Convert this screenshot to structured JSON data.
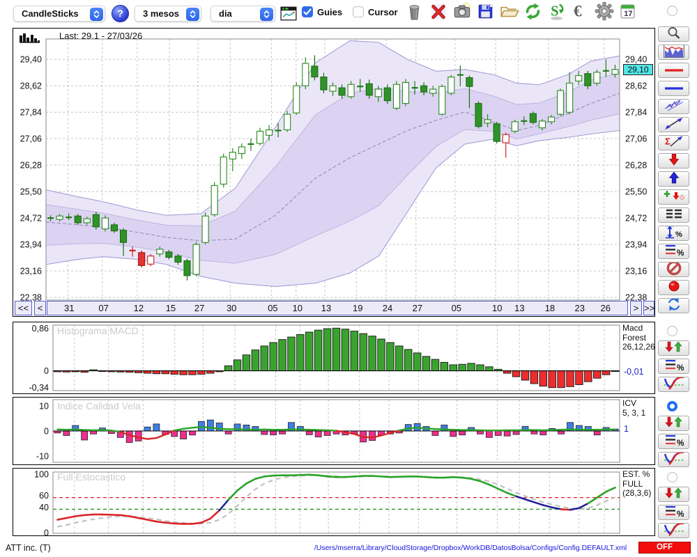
{
  "toolbar": {
    "chart_type_select": "CandleSticks",
    "period_select": "3 mesos",
    "timeframe_select": "dia",
    "help_label": "?",
    "guides_label": "Guies",
    "guides_checked": true,
    "cursor_label": "Cursor",
    "cursor_checked": false,
    "calendar_day": "17",
    "icons": [
      "trash",
      "delete",
      "snapshot",
      "save",
      "open",
      "refresh",
      "update-quotes",
      "euro",
      "settings",
      "calendar"
    ]
  },
  "main_chart": {
    "last_label": "Last: 29.1 - 27/03/26",
    "price_tag": "29,10",
    "y_ticks": [
      "29,40",
      "28,62",
      "27,84",
      "27,06",
      "26,28",
      "25,50",
      "24,72",
      "23,94",
      "23,16",
      "22,38"
    ],
    "y_values": [
      29.4,
      28.62,
      27.84,
      27.06,
      26.28,
      25.5,
      24.72,
      23.94,
      23.16,
      22.38
    ],
    "nav": {
      "first": "<<",
      "prev": "<",
      "next": ">",
      "last": ">>"
    },
    "dates": [
      {
        "label": "31",
        "f": 0.038
      },
      {
        "label": "07",
        "f": 0.098
      },
      {
        "label": "12",
        "f": 0.159
      },
      {
        "label": "15",
        "f": 0.215
      },
      {
        "label": "27",
        "f": 0.265
      },
      {
        "label": "30",
        "f": 0.321
      },
      {
        "label": "05",
        "f": 0.393
      },
      {
        "label": "10",
        "f": 0.436
      },
      {
        "label": "13",
        "f": 0.486
      },
      {
        "label": "19",
        "f": 0.541
      },
      {
        "label": "24",
        "f": 0.593
      },
      {
        "label": "27",
        "f": 0.645
      },
      {
        "label": "05",
        "f": 0.713
      },
      {
        "label": "10",
        "f": 0.784
      },
      {
        "label": "13",
        "f": 0.823
      },
      {
        "label": "18",
        "f": 0.876
      },
      {
        "label": "23",
        "f": 0.928
      },
      {
        "label": "26",
        "f": 0.973
      }
    ]
  },
  "chart_data": [
    {
      "id": "price",
      "type": "candlestick",
      "last_price": 29.1,
      "ylim": [
        22.3,
        30.0
      ],
      "candle_types": {
        "0": "bull-filled-green",
        "1": "hollow-green",
        "2": "bear-filled-red",
        "3": "hollow-red",
        "4": "doji-green",
        "5": "doji-red"
      },
      "candles": [
        [
          24.7,
          24.8,
          24.62,
          24.72,
          4
        ],
        [
          24.68,
          24.84,
          24.62,
          24.78,
          1
        ],
        [
          24.74,
          24.86,
          24.66,
          24.74,
          4
        ],
        [
          24.78,
          24.84,
          24.52,
          24.58,
          0
        ],
        [
          24.58,
          24.76,
          24.52,
          24.7,
          1
        ],
        [
          24.82,
          24.9,
          24.38,
          24.46,
          0
        ],
        [
          24.4,
          24.8,
          24.32,
          24.72,
          1
        ],
        [
          24.52,
          24.58,
          24.28,
          24.34,
          0
        ],
        [
          24.36,
          24.42,
          23.6,
          24.0,
          0
        ],
        [
          23.76,
          23.88,
          23.58,
          23.76,
          5
        ],
        [
          23.7,
          23.76,
          23.26,
          23.32,
          2
        ],
        [
          23.36,
          23.66,
          23.3,
          23.6,
          3
        ],
        [
          23.66,
          23.88,
          23.58,
          23.8,
          1
        ],
        [
          23.72,
          23.78,
          23.5,
          23.56,
          0
        ],
        [
          23.6,
          23.66,
          23.34,
          23.42,
          0
        ],
        [
          23.46,
          23.52,
          22.88,
          23.02,
          0
        ],
        [
          23.06,
          24.02,
          23.0,
          23.94,
          1
        ],
        [
          24.0,
          24.88,
          23.94,
          24.78,
          1
        ],
        [
          24.82,
          25.78,
          24.76,
          25.68,
          1
        ],
        [
          25.72,
          26.62,
          25.62,
          26.52,
          1
        ],
        [
          26.46,
          26.78,
          26.1,
          26.66,
          1
        ],
        [
          26.62,
          26.92,
          26.46,
          26.82,
          1
        ],
        [
          26.86,
          27.06,
          26.7,
          26.9,
          4
        ],
        [
          26.92,
          27.38,
          26.86,
          27.28,
          1
        ],
        [
          27.16,
          27.46,
          27.0,
          27.32,
          1
        ],
        [
          27.26,
          27.52,
          27.1,
          27.3,
          4
        ],
        [
          27.32,
          27.88,
          27.26,
          27.78,
          1
        ],
        [
          27.82,
          28.72,
          27.76,
          28.62,
          1
        ],
        [
          28.62,
          29.46,
          28.52,
          29.28,
          1
        ],
        [
          29.2,
          29.52,
          28.78,
          28.88,
          0
        ],
        [
          28.88,
          29.0,
          28.4,
          28.5,
          0
        ],
        [
          28.46,
          28.72,
          28.32,
          28.62,
          1
        ],
        [
          28.56,
          28.66,
          28.24,
          28.34,
          0
        ],
        [
          28.3,
          28.76,
          28.24,
          28.66,
          1
        ],
        [
          28.6,
          28.82,
          28.44,
          28.6,
          4
        ],
        [
          28.68,
          28.8,
          28.24,
          28.34,
          0
        ],
        [
          28.3,
          28.62,
          28.14,
          28.52,
          1
        ],
        [
          28.56,
          28.66,
          28.08,
          28.18,
          0
        ],
        [
          27.96,
          28.76,
          27.9,
          28.66,
          1
        ],
        [
          28.1,
          28.82,
          28.02,
          28.72,
          1
        ],
        [
          28.56,
          28.76,
          28.36,
          28.56,
          4
        ],
        [
          28.62,
          28.72,
          28.34,
          28.44,
          0
        ],
        [
          28.4,
          28.62,
          28.3,
          28.52,
          1
        ],
        [
          27.78,
          28.66,
          27.74,
          28.6,
          1
        ],
        [
          28.4,
          28.94,
          28.34,
          28.88,
          1
        ],
        [
          28.9,
          29.22,
          28.6,
          28.94,
          4
        ],
        [
          28.86,
          28.92,
          27.96,
          28.6,
          0
        ],
        [
          28.1,
          28.16,
          27.36,
          27.42,
          0
        ],
        [
          27.62,
          27.78,
          27.4,
          27.52,
          1
        ],
        [
          27.5,
          27.56,
          26.92,
          26.98,
          0
        ],
        [
          26.94,
          27.24,
          26.5,
          27.18,
          3
        ],
        [
          27.28,
          27.62,
          27.22,
          27.56,
          1
        ],
        [
          27.58,
          27.72,
          27.46,
          27.58,
          4
        ],
        [
          27.8,
          27.86,
          27.48,
          27.54,
          0
        ],
        [
          27.38,
          27.64,
          27.3,
          27.58,
          1
        ],
        [
          27.56,
          27.76,
          27.48,
          27.7,
          1
        ],
        [
          27.78,
          28.54,
          27.72,
          28.48,
          1
        ],
        [
          27.84,
          29.02,
          27.78,
          28.7,
          1
        ],
        [
          28.76,
          29.06,
          28.64,
          28.92,
          1
        ],
        [
          28.98,
          29.06,
          28.52,
          28.62,
          0
        ],
        [
          28.7,
          29.1,
          28.62,
          29.02,
          1
        ],
        [
          29.0,
          29.4,
          28.88,
          29.06,
          4
        ],
        [
          28.96,
          29.24,
          28.86,
          29.1,
          1
        ]
      ],
      "bollinger": {
        "f": [
          0,
          0.055,
          0.1,
          0.16,
          0.21,
          0.27,
          0.33,
          0.4,
          0.47,
          0.53,
          0.58,
          0.63,
          0.68,
          0.73,
          0.78,
          0.82,
          0.86,
          0.91,
          0.95,
          1.0
        ],
        "upper": [
          25.55,
          25.35,
          25.2,
          24.95,
          24.8,
          24.85,
          25.6,
          27.4,
          29.3,
          29.95,
          29.9,
          29.4,
          29.05,
          29.1,
          28.95,
          28.7,
          28.65,
          28.95,
          29.35,
          29.5
        ],
        "lower": [
          23.35,
          23.5,
          23.58,
          23.5,
          23.35,
          23.0,
          22.8,
          22.7,
          22.8,
          23.1,
          23.6,
          24.9,
          26.2,
          26.9,
          27.05,
          26.85,
          27.0,
          27.1,
          27.2,
          27.3
        ],
        "mid": [
          24.6,
          24.52,
          24.45,
          24.3,
          24.15,
          24.05,
          24.1,
          24.8,
          25.9,
          26.5,
          26.9,
          27.3,
          27.6,
          27.85,
          27.55,
          27.3,
          27.45,
          27.8,
          28.1,
          28.4
        ]
      }
    },
    {
      "id": "macd",
      "type": "bar",
      "title": "Histograma MACD",
      "right_lines": [
        "Macd",
        "Forest",
        "26,12,26"
      ],
      "current": "-0,01",
      "current_v": -0.01,
      "ylim": [
        -0.4,
        0.92
      ],
      "yticks": [
        {
          "label": "0,86",
          "v": 0.86
        },
        {
          "label": "0",
          "v": 0
        },
        {
          "label": "-0,34",
          "v": -0.34
        }
      ],
      "values": [
        -0.02,
        -0.025,
        -0.02,
        -0.03,
        0.02,
        -0.015,
        -0.02,
        -0.025,
        -0.03,
        -0.04,
        -0.05,
        -0.06,
        -0.06,
        -0.07,
        -0.08,
        -0.08,
        -0.07,
        -0.05,
        -0.02,
        0.1,
        0.22,
        0.32,
        0.42,
        0.5,
        0.57,
        0.63,
        0.68,
        0.73,
        0.78,
        0.82,
        0.85,
        0.86,
        0.84,
        0.8,
        0.75,
        0.7,
        0.64,
        0.57,
        0.5,
        0.43,
        0.36,
        0.29,
        0.23,
        0.17,
        0.12,
        0.13,
        0.15,
        0.12,
        0.08,
        0.03,
        -0.05,
        -0.12,
        -0.19,
        -0.26,
        -0.31,
        -0.34,
        -0.34,
        -0.32,
        -0.28,
        -0.22,
        -0.15,
        -0.08,
        -0.01
      ]
    },
    {
      "id": "icv",
      "type": "bar+line",
      "title": "Indice Calidad Vela",
      "right_lines": [
        "ICV",
        "5, 3, 1"
      ],
      "current": "1",
      "current_v": 1,
      "ylim": [
        -12.5,
        12.5
      ],
      "yticks": [
        {
          "label": "10",
          "v": 10
        },
        {
          "label": "0",
          "v": 0
        },
        {
          "label": "-10",
          "v": -10
        }
      ],
      "bars": [
        -0.8,
        -1.8,
        2.2,
        -3.6,
        -1.2,
        1.2,
        -1.0,
        -2.6,
        -4.6,
        -4.0,
        1.6,
        2.8,
        -1.4,
        -2.2,
        -3.2,
        -1.6,
        3.8,
        4.4,
        3.2,
        -1.2,
        2.8,
        2.4,
        1.8,
        -1.4,
        -1.6,
        -1.2,
        3.4,
        1.8,
        -1.5,
        -2.4,
        -1.8,
        -1.2,
        -1.6,
        -1.2,
        -4.4,
        -3.8,
        -1.6,
        -1.2,
        -0.8,
        2.6,
        3.0,
        1.8,
        -1.8,
        2.4,
        -2.2,
        -1.6,
        1.4,
        -1.2,
        -2.6,
        -1.8,
        -2.0,
        -1.4,
        1.8,
        -1.2,
        -1.6,
        1.0,
        -1.2,
        3.4,
        2.2,
        1.8,
        -1.6,
        1.4,
        0.8
      ],
      "line": [
        0.6,
        0.5,
        0.6,
        0.4,
        0.3,
        0.4,
        0.2,
        -0.4,
        -1.6,
        -2.6,
        -3.2,
        -2.8,
        -1.4,
        0.2,
        0.9,
        1.3,
        1.6,
        1.3,
        0.9,
        0.7,
        0.7,
        0.6,
        0.5,
        0.6,
        0.5,
        0.5,
        0.6,
        0.6,
        0.5,
        0.4,
        0.3,
        0.1,
        -0.5,
        -1.2,
        -2.4,
        -2.6,
        -1.8,
        -0.8,
        0.2,
        1.0,
        1.3,
        1.0,
        0.8,
        0.6,
        0.5,
        0.4,
        0.4,
        0.3,
        0.2,
        0.2,
        0.3,
        0.3,
        0.4,
        0.4,
        0.3,
        0.4,
        0.5,
        0.6,
        0.6,
        0.5,
        0.5,
        0.6,
        0.6
      ]
    },
    {
      "id": "stoch",
      "type": "line",
      "title": "Full Estocastico",
      "right_lines": [
        "EST. %",
        "FULL",
        "(28,3,6)"
      ],
      "ylim": [
        0,
        100
      ],
      "yticks": [
        {
          "label": "100",
          "v": 100
        },
        {
          "label": "60",
          "v": 60,
          "dy": -3
        },
        {
          "label": "40",
          "v": 40,
          "dy": -3
        },
        {
          "label": "0",
          "v": 0
        }
      ],
      "hlines": [
        {
          "v": 60,
          "color": "#e02020"
        },
        {
          "v": 40,
          "color": "#1d8a1d"
        }
      ],
      "k": [
        22,
        25,
        28,
        30,
        31,
        31,
        30.5,
        30,
        28,
        25,
        22,
        19,
        17,
        15.5,
        15,
        15,
        17,
        24,
        38,
        56,
        72,
        84,
        92,
        96,
        97.5,
        98,
        98,
        98.5,
        99,
        98,
        96,
        95,
        95,
        96,
        97,
        97,
        96,
        95,
        95.5,
        96,
        96,
        95,
        94,
        94,
        95,
        94,
        92,
        88,
        82,
        75,
        68,
        62,
        57,
        52,
        47,
        43,
        40,
        39,
        42,
        50,
        60,
        70,
        77
      ],
      "d": [
        10,
        13,
        17,
        20,
        23,
        25,
        27,
        28,
        28,
        27,
        25,
        23,
        20,
        18,
        16.5,
        15.5,
        15.5,
        17,
        22,
        32,
        46,
        61,
        74,
        84,
        90,
        94,
        96,
        97,
        98,
        98,
        97.5,
        96.5,
        95.5,
        95.5,
        96,
        96.5,
        96.5,
        96,
        95.5,
        95.5,
        96,
        95.5,
        94.5,
        94,
        94.5,
        94.5,
        93.5,
        91,
        87.5,
        82,
        75,
        68.5,
        62.5,
        57,
        52,
        48,
        44.5,
        41.5,
        40.5,
        42,
        47,
        54,
        60.5
      ]
    }
  ],
  "sidebar": {
    "main_radio_selected": false,
    "tools": [
      "zoom",
      "indicator-panels",
      "red-hline",
      "blue-hline",
      "channel",
      "trendline",
      "sigma-trendline",
      "arrow-down",
      "arrow-up",
      "entry-signals",
      "levels-list",
      "measure-percent",
      "compare-percent",
      "block",
      "record",
      "sync"
    ],
    "groups": [
      {
        "panel": "macd",
        "selected": false,
        "buttons": [
          "updown-arrows",
          "lines-percent",
          "curves"
        ]
      },
      {
        "panel": "icv",
        "selected": true,
        "buttons": [
          "updown-arrows",
          "lines-percent",
          "curves"
        ]
      },
      {
        "panel": "stoch",
        "selected": false,
        "buttons": [
          "updown-arrows",
          "lines-percent",
          "curves"
        ]
      }
    ]
  },
  "statusbar": {
    "symbol": "ATT inc. (T)",
    "config_path": "/Users/mserra/Library/CloudStorage/Dropbox/WorkDB/DatosBolsa/Configs/Config.DEFAULT.xml",
    "off_label": "OFF"
  },
  "colors": {
    "accent_blue": "#2f6ceb",
    "candle_up_fill": "#2f9428",
    "candle_up_stroke": "#1d6b14",
    "candle_hollow_stroke": "#2a8a20",
    "candle_down_fill": "#e43333",
    "candle_down_stroke": "#a01010",
    "candle_hollow_red_stroke": "#cf2020",
    "doji_green": "#1f7a18",
    "doji_red": "#cc2222",
    "macd_pos": "#3aa32f",
    "macd_neg": "#ec2d2d",
    "icv_pos": "#3f7ee6",
    "icv_neg": "#ec2f8f",
    "line_green": "#2aa32a",
    "line_red": "#da2525",
    "line_navy": "#22229a",
    "stoch_d_gray": "#c2c2c2",
    "band_fill": "#eae6f8",
    "band_inner": "#dbd3f1",
    "tag_cyan": "#52e5e5",
    "value_blue": "#2222cc",
    "off_red": "#f20c0c",
    "path_blue": "#1414e0"
  }
}
